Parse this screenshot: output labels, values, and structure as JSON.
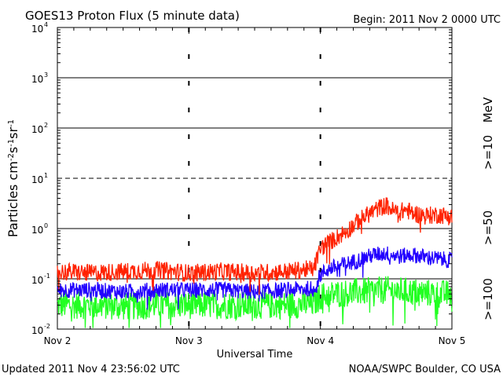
{
  "title": "GOES13 Proton Flux (5 minute data)",
  "begin_label": "Begin: 2011 Nov 2 0000 UTC",
  "updated_label": "Updated 2011 Nov  4 23:56:02 UTC",
  "source_label": "NOAA/SWPC Boulder, CO USA",
  "colors": {
    "red": "#ff2200",
    "blue": "#2200ff",
    "green": "#22ff22",
    "axis": "#000000"
  },
  "chart_data": {
    "type": "line",
    "title": "GOES13 Proton Flux (5 minute data)",
    "xlabel": "Universal Time",
    "ylabel": {
      "parts": [
        {
          "text": "Particles cm",
          "sup": false
        },
        {
          "text": "-2",
          "sup": true
        },
        {
          "text": "s",
          "sup": false
        },
        {
          "text": "-1",
          "sup": true
        },
        {
          "text": "sr",
          "sup": false
        },
        {
          "text": "-1",
          "sup": true
        }
      ]
    },
    "x_ticks": [
      "Nov 2",
      "Nov 3",
      "Nov 4",
      "Nov 5"
    ],
    "xlim_days": [
      0,
      3
    ],
    "y_scale": "log",
    "ylim": [
      0.01,
      10000
    ],
    "y_ticks": [
      {
        "base": "10",
        "exp": "-2"
      },
      {
        "base": "10",
        "exp": "-1"
      },
      {
        "base": "10",
        "exp": "0"
      },
      {
        "base": "10",
        "exp": "1"
      },
      {
        "base": "10",
        "exp": "2"
      },
      {
        "base": "10",
        "exp": "3"
      },
      {
        "base": "10",
        "exp": "4"
      }
    ],
    "unit_label": "MeV",
    "series": [
      {
        "name": ">=10",
        "color": "#ff2200",
        "x": [
          0,
          0.25,
          0.5,
          0.75,
          1.0,
          1.25,
          1.5,
          1.75,
          1.95,
          2.0,
          2.05,
          2.1,
          2.2,
          2.3,
          2.4,
          2.45,
          2.5,
          2.55,
          2.6,
          2.65,
          2.7,
          2.8,
          2.9,
          3.0
        ],
        "values": [
          0.14,
          0.13,
          0.14,
          0.15,
          0.13,
          0.14,
          0.13,
          0.14,
          0.16,
          0.4,
          0.5,
          0.6,
          0.9,
          1.5,
          2.2,
          2.6,
          2.9,
          2.3,
          2.1,
          2.4,
          2.0,
          1.8,
          1.9,
          1.7
        ],
        "band_decades": 0.18
      },
      {
        "name": ">=50",
        "color": "#2200ff",
        "x": [
          0,
          0.25,
          0.5,
          0.75,
          1.0,
          1.25,
          1.5,
          1.75,
          1.95,
          2.0,
          2.05,
          2.1,
          2.2,
          2.3,
          2.4,
          2.5,
          2.6,
          2.7,
          2.8,
          2.9,
          3.0
        ],
        "values": [
          0.06,
          0.06,
          0.055,
          0.06,
          0.06,
          0.06,
          0.055,
          0.06,
          0.065,
          0.12,
          0.15,
          0.17,
          0.2,
          0.24,
          0.3,
          0.32,
          0.28,
          0.3,
          0.27,
          0.25,
          0.23
        ],
        "band_decades": 0.16
      },
      {
        "name": ">=100",
        "color": "#22ff22",
        "x": [
          0,
          0.25,
          0.5,
          0.75,
          1.0,
          1.25,
          1.5,
          1.75,
          1.95,
          2.0,
          2.1,
          2.3,
          2.5,
          2.7,
          2.9,
          3.0
        ],
        "values": [
          0.03,
          0.03,
          0.028,
          0.03,
          0.03,
          0.03,
          0.03,
          0.03,
          0.032,
          0.045,
          0.05,
          0.055,
          0.06,
          0.055,
          0.05,
          0.05
        ],
        "band_decades": 0.28
      }
    ],
    "reference_lines": [
      {
        "value": 10,
        "style": "dashed"
      },
      {
        "value": 0.1,
        "style": "solid"
      }
    ],
    "grid": true
  }
}
